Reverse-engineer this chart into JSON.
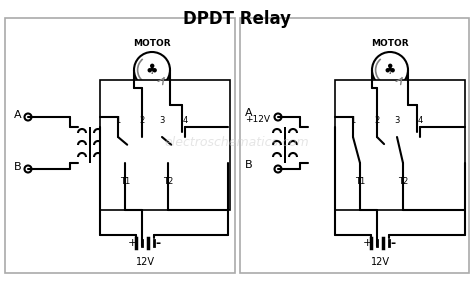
{
  "title": "DPDT Relay",
  "title_fontsize": 12,
  "title_fontweight": "bold",
  "bg_color": "#ffffff",
  "line_color": "#000000",
  "lw": 1.5,
  "box_color": "#d0d0d0",
  "watermark": "electroschematics.com",
  "panel1": {
    "label_A": "A",
    "label_B": "B",
    "label_motor": "MOTOR",
    "label_12V": "12V",
    "label_T1": "T1",
    "label_T2": "T2",
    "labels_1234": [
      "1",
      "2",
      "3",
      "4"
    ]
  },
  "panel2": {
    "label_A": "A",
    "label_B": "B",
    "label_12Vplus": "+12V",
    "label_motor": "MOTOR",
    "label_12V": "12V",
    "label_T1": "T1",
    "label_T2": "T2",
    "labels_1234": [
      "1",
      "2",
      "3",
      "4"
    ]
  }
}
